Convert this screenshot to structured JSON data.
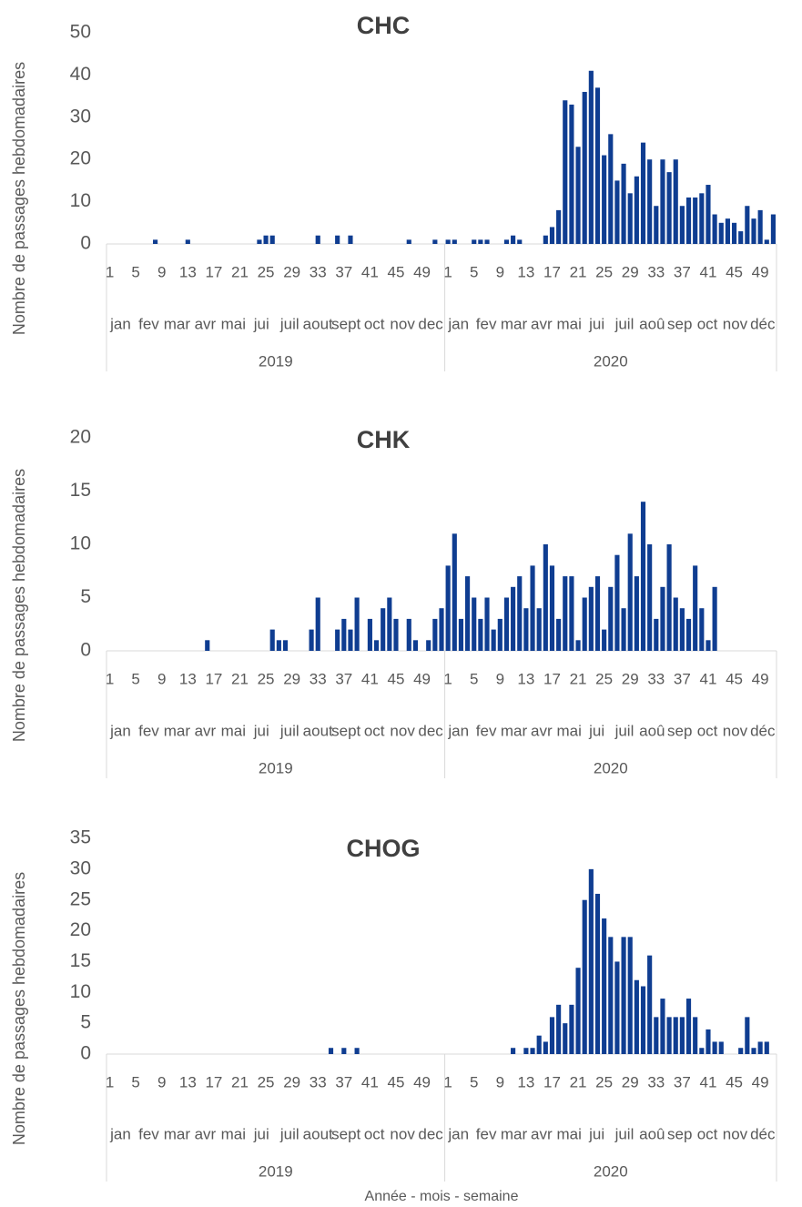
{
  "chart_data": [
    {
      "type": "bar",
      "title": "CHC",
      "y_label": "Nombre de passages hebdomadaires",
      "color": "#0f3d91",
      "ylim": [
        0,
        50
      ],
      "yticks": [
        0,
        10,
        20,
        30,
        40,
        50
      ],
      "categories": [
        1,
        null,
        null,
        null,
        5,
        null,
        null,
        null,
        9,
        null,
        null,
        null,
        13,
        null,
        null,
        null,
        17,
        null,
        null,
        null,
        21,
        null,
        null,
        null,
        25,
        null,
        null,
        null,
        29,
        null,
        null,
        null,
        33,
        null,
        null,
        null,
        37,
        null,
        null,
        null,
        41,
        null,
        null,
        null,
        45,
        null,
        null,
        null,
        49,
        null,
        null,
        null,
        1,
        null,
        null,
        null,
        5,
        null,
        null,
        null,
        9,
        null,
        null,
        null,
        13,
        null,
        null,
        null,
        17,
        null,
        null,
        null,
        21,
        null,
        null,
        null,
        25,
        null,
        null,
        null,
        29,
        null,
        null,
        null,
        33,
        null,
        null,
        null,
        37,
        null,
        null,
        null,
        41,
        null,
        null,
        null,
        45,
        null,
        null,
        null,
        49,
        null,
        null
      ],
      "groups": [
        {
          "label": "2019",
          "months": [
            "jan",
            "fev",
            "mar",
            "avr",
            "mai",
            "jui",
            "juil",
            "aout",
            "sept",
            "oct",
            "nov",
            "dec"
          ]
        },
        {
          "label": "2020",
          "months": [
            "jan",
            "fev",
            "mar",
            "avr",
            "mai",
            "jui",
            "juil",
            "aoû",
            "sep",
            "oct",
            "nov",
            "déc"
          ]
        }
      ],
      "values": [
        0,
        0,
        0,
        0,
        0,
        0,
        0,
        1,
        0,
        0,
        0,
        0,
        1,
        0,
        0,
        0,
        0,
        0,
        0,
        0,
        0,
        0,
        0,
        1,
        2,
        2,
        0,
        0,
        0,
        0,
        0,
        0,
        2,
        0,
        0,
        2,
        0,
        2,
        0,
        0,
        0,
        0,
        0,
        0,
        0,
        0,
        1,
        0,
        0,
        0,
        1,
        0,
        1,
        1,
        0,
        0,
        1,
        1,
        1,
        0,
        0,
        1,
        2,
        1,
        0,
        0,
        0,
        2,
        4,
        8,
        34,
        33,
        23,
        36,
        41,
        37,
        21,
        26,
        15,
        19,
        12,
        16,
        24,
        20,
        9,
        20,
        17,
        20,
        9,
        11,
        11,
        12,
        14,
        7,
        5,
        6,
        5,
        3,
        9,
        6,
        8,
        1,
        7
      ]
    },
    {
      "type": "bar",
      "title": "CHK",
      "y_label": "Nombre de passages hebdomadaires",
      "color": "#0f3d91",
      "ylim": [
        0,
        20
      ],
      "yticks": [
        0,
        5,
        10,
        15,
        20
      ],
      "categories": [
        1,
        null,
        null,
        null,
        5,
        null,
        null,
        null,
        9,
        null,
        null,
        null,
        13,
        null,
        null,
        null,
        17,
        null,
        null,
        null,
        21,
        null,
        null,
        null,
        25,
        null,
        null,
        null,
        29,
        null,
        null,
        null,
        33,
        null,
        null,
        null,
        37,
        null,
        null,
        null,
        41,
        null,
        null,
        null,
        45,
        null,
        null,
        null,
        49,
        null,
        null,
        null,
        1,
        null,
        null,
        null,
        5,
        null,
        null,
        null,
        9,
        null,
        null,
        null,
        13,
        null,
        null,
        null,
        17,
        null,
        null,
        null,
        21,
        null,
        null,
        null,
        25,
        null,
        null,
        null,
        29,
        null,
        null,
        null,
        33,
        null,
        null,
        null,
        37,
        null,
        null,
        null,
        41,
        null,
        null,
        null,
        45,
        null,
        null,
        null,
        49,
        null,
        null
      ],
      "groups": [
        {
          "label": "2019",
          "months": [
            "jan",
            "fev",
            "mar",
            "avr",
            "mai",
            "jui",
            "juil",
            "aout",
            "sept",
            "oct",
            "nov",
            "dec"
          ]
        },
        {
          "label": "2020",
          "months": [
            "jan",
            "fev",
            "mar",
            "avr",
            "mai",
            "jui",
            "juil",
            "aoû",
            "sep",
            "oct",
            "nov",
            "déc"
          ]
        }
      ],
      "values": [
        0,
        0,
        0,
        0,
        0,
        0,
        0,
        0,
        0,
        0,
        0,
        0,
        0,
        0,
        0,
        1,
        0,
        0,
        0,
        0,
        0,
        0,
        0,
        0,
        0,
        2,
        1,
        1,
        0,
        0,
        0,
        2,
        5,
        0,
        0,
        2,
        3,
        2,
        5,
        0,
        3,
        1,
        4,
        5,
        3,
        0,
        3,
        1,
        0,
        1,
        3,
        4,
        8,
        11,
        3,
        7,
        5,
        3,
        5,
        2,
        3,
        5,
        6,
        7,
        4,
        8,
        4,
        10,
        8,
        3,
        7,
        7,
        1,
        5,
        6,
        7,
        2,
        6,
        9,
        4,
        11,
        7,
        14,
        10,
        3,
        6,
        10,
        5,
        4,
        3,
        8,
        4,
        1,
        6,
        0,
        0,
        0,
        0,
        0,
        0,
        0,
        0,
        0
      ]
    },
    {
      "type": "bar",
      "title": "CHOG",
      "y_label": "Nombre de passages hebdomadaires",
      "x_label": "Année - mois - semaine",
      "color": "#0f3d91",
      "ylim": [
        0,
        35
      ],
      "yticks": [
        0,
        5,
        10,
        15,
        20,
        25,
        30,
        35
      ],
      "categories": [
        1,
        null,
        null,
        null,
        5,
        null,
        null,
        null,
        9,
        null,
        null,
        null,
        13,
        null,
        null,
        null,
        17,
        null,
        null,
        null,
        21,
        null,
        null,
        null,
        25,
        null,
        null,
        null,
        29,
        null,
        null,
        null,
        33,
        null,
        null,
        null,
        37,
        null,
        null,
        null,
        41,
        null,
        null,
        null,
        45,
        null,
        null,
        null,
        49,
        null,
        null,
        null,
        1,
        null,
        null,
        null,
        5,
        null,
        null,
        null,
        9,
        null,
        null,
        null,
        13,
        null,
        null,
        null,
        17,
        null,
        null,
        null,
        21,
        null,
        null,
        null,
        25,
        null,
        null,
        null,
        29,
        null,
        null,
        null,
        33,
        null,
        null,
        null,
        37,
        null,
        null,
        null,
        41,
        null,
        null,
        null,
        45,
        null,
        null,
        null,
        49,
        null,
        null
      ],
      "groups": [
        {
          "label": "2019",
          "months": [
            "jan",
            "fev",
            "mar",
            "avr",
            "mai",
            "jui",
            "juil",
            "aout",
            "sept",
            "oct",
            "nov",
            "dec"
          ]
        },
        {
          "label": "2020",
          "months": [
            "jan",
            "fev",
            "mar",
            "avr",
            "mai",
            "jui",
            "juil",
            "aoû",
            "sep",
            "oct",
            "nov",
            "déc"
          ]
        }
      ],
      "values": [
        0,
        0,
        0,
        0,
        0,
        0,
        0,
        0,
        0,
        0,
        0,
        0,
        0,
        0,
        0,
        0,
        0,
        0,
        0,
        0,
        0,
        0,
        0,
        0,
        0,
        0,
        0,
        0,
        0,
        0,
        0,
        0,
        0,
        0,
        1,
        0,
        1,
        0,
        1,
        0,
        0,
        0,
        0,
        0,
        0,
        0,
        0,
        0,
        0,
        0,
        0,
        0,
        0,
        0,
        0,
        0,
        0,
        0,
        0,
        0,
        0,
        0,
        1,
        0,
        1,
        1,
        3,
        2,
        6,
        8,
        5,
        8,
        14,
        25,
        30,
        26,
        22,
        19,
        15,
        19,
        19,
        12,
        11,
        16,
        6,
        9,
        6,
        6,
        6,
        9,
        6,
        1,
        4,
        2,
        2,
        0,
        0,
        1,
        6,
        1,
        2,
        2,
        0
      ]
    }
  ]
}
